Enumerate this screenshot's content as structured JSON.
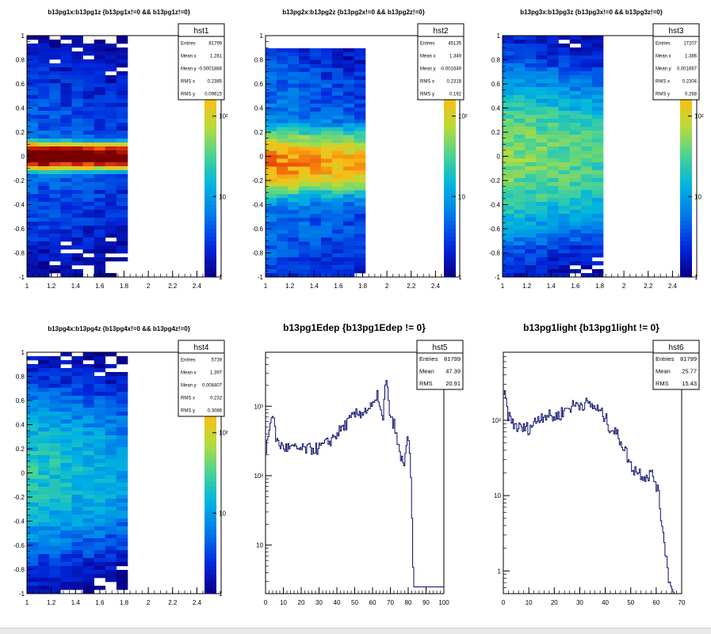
{
  "chart_data": [
    {
      "type": "heatmap",
      "title": "b13pg1x:b13pg1z {b13pg1x!=0 && b13pg1z!=0}",
      "stats": {
        "name": "hst1",
        "rows": [
          [
            "Entries",
            "81799"
          ],
          [
            "Mean x",
            "1.281"
          ],
          [
            "Mean y",
            "-0.0001888"
          ],
          [
            "RMS x",
            "0.2385"
          ],
          [
            "RMS y",
            "0.09615"
          ]
        ]
      },
      "xlim": [
        1,
        2.6
      ],
      "ylim": [
        -1,
        1
      ],
      "xticks": [
        1,
        1.2,
        1.4,
        1.6,
        1.8,
        2,
        2.2,
        2.4
      ],
      "yticks": [
        -1,
        -0.8,
        -0.6,
        -0.4,
        -0.2,
        0,
        0.2,
        0.4,
        0.6,
        0.8,
        1
      ],
      "colorbar_ticks": [
        "1",
        "10",
        "10²"
      ],
      "colorscale_max": 1000,
      "data_x_range": [
        1,
        1.85
      ],
      "peak": 2800,
      "core_sigma": 0.04,
      "tail_level": 5,
      "tail_sigma": 0.6,
      "x_falloff": 0.4
    },
    {
      "type": "heatmap",
      "title": "b13pg2x:b13pg2z {b13pg2x!=0 && b13pg2z!=0}",
      "stats": {
        "name": "hst2",
        "rows": [
          [
            "Entries",
            "45135"
          ],
          [
            "Mean x",
            "1.349"
          ],
          [
            "Mean y",
            "-0.001649"
          ],
          [
            "RMS x",
            "0.2318"
          ],
          [
            "RMS y",
            "0.192"
          ]
        ]
      },
      "xlim": [
        1,
        2.6
      ],
      "ylim": [
        -1,
        1
      ],
      "xticks": [
        1,
        1.2,
        1.4,
        1.6,
        1.8,
        2,
        2.2,
        2.4
      ],
      "yticks": [
        -1,
        -0.8,
        -0.6,
        -0.4,
        -0.2,
        0,
        0.2,
        0.4,
        0.6,
        0.8,
        1
      ],
      "colorbar_ticks": [
        "1",
        "10",
        "10²"
      ],
      "colorscale_max": 1000,
      "data_x_range": [
        1,
        1.85
      ],
      "peak": 300,
      "core_sigma": 0.12,
      "tail_level": 8,
      "tail_sigma": 0.7,
      "x_falloff": 0.45
    },
    {
      "type": "heatmap",
      "title": "b13pg3x:b13pg3z {b13pg3x!=0 && b13pg3z!=0}",
      "stats": {
        "name": "hst3",
        "rows": [
          [
            "Entries",
            "17207"
          ],
          [
            "Mean x",
            "1.386"
          ],
          [
            "Mean y",
            "0.001667"
          ],
          [
            "RMS x",
            "0.2304"
          ],
          [
            "RMS y",
            "0.268"
          ]
        ]
      },
      "xlim": [
        1,
        2.6
      ],
      "ylim": [
        -1,
        1
      ],
      "xticks": [
        1,
        1.2,
        1.4,
        1.6,
        1.8,
        2,
        2.2,
        2.4
      ],
      "yticks": [
        -1,
        -0.8,
        -0.6,
        -0.4,
        -0.2,
        0,
        0.2,
        0.4,
        0.6,
        0.8,
        1
      ],
      "colorbar_ticks": [
        "1",
        "10",
        "10²"
      ],
      "colorscale_max": 1000,
      "data_x_range": [
        1,
        1.85
      ],
      "peak": 55,
      "core_sigma": 0.3,
      "tail_level": 4,
      "tail_sigma": 0.8,
      "x_falloff": 0.5
    },
    {
      "type": "heatmap",
      "title": "b13pg4x:b13pg4z {b13pg4x!=0 && b13pg4z!=0}",
      "stats": {
        "name": "hst4",
        "rows": [
          [
            "Entries",
            "5739"
          ],
          [
            "Mean x",
            "1.397"
          ],
          [
            "Mean y",
            "0.008407"
          ],
          [
            "RMS x",
            "0.232"
          ],
          [
            "RMS y",
            "0.3086"
          ]
        ]
      },
      "xlim": [
        1,
        2.6
      ],
      "ylim": [
        -1,
        1
      ],
      "xticks": [
        1,
        1.2,
        1.4,
        1.6,
        1.8,
        2,
        2.2,
        2.4
      ],
      "yticks": [
        -1,
        -0.8,
        -0.6,
        -0.4,
        -0.2,
        0,
        0.2,
        0.4,
        0.6,
        0.8,
        1
      ],
      "colorbar_ticks": [
        "1",
        "10",
        "10²"
      ],
      "colorscale_max": 1000,
      "data_x_range": [
        1,
        1.85
      ],
      "peak": 22,
      "core_sigma": 0.35,
      "tail_level": 2,
      "tail_sigma": 0.9,
      "x_falloff": 0.55
    },
    {
      "type": "line",
      "style": "step",
      "title": "b13pg1Edep {b13pg1Edep != 0}",
      "stats": {
        "name": "hst5",
        "rows": [
          [
            "Entries",
            "81799"
          ],
          [
            "Mean",
            "47.39"
          ],
          [
            "RMS",
            "20.91"
          ]
        ]
      },
      "xlim": [
        0,
        100
      ],
      "ylim": [
        2,
        6000
      ],
      "yscale": "log",
      "xticks": [
        0,
        10,
        20,
        30,
        40,
        50,
        60,
        70,
        80,
        90,
        100
      ],
      "yticks": [
        {
          "v": 10,
          "label": "10"
        },
        {
          "v": 100,
          "label": "10²"
        },
        {
          "v": 1000,
          "label": "10³"
        }
      ],
      "x": [
        0,
        1,
        2,
        3,
        4,
        5,
        6,
        7,
        8,
        10,
        14,
        20,
        25,
        30,
        35,
        40,
        45,
        50,
        55,
        60,
        62,
        63,
        64,
        65,
        66,
        67,
        68,
        69,
        70,
        72,
        74,
        76,
        78,
        79,
        80,
        81,
        82,
        83,
        84,
        90,
        100
      ],
      "values": [
        200,
        320,
        400,
        700,
        850,
        500,
        350,
        300,
        280,
        260,
        250,
        240,
        245,
        250,
        300,
        400,
        550,
        750,
        850,
        1000,
        1100,
        1500,
        1200,
        700,
        600,
        1900,
        2100,
        1400,
        600,
        600,
        300,
        170,
        160,
        280,
        320,
        200,
        40,
        2.5,
        2.5,
        2.5,
        2.5
      ]
    },
    {
      "type": "line",
      "style": "step",
      "title": "b13pg1light {b13pg1light != 0}",
      "stats": {
        "name": "hst6",
        "rows": [
          [
            "Entries",
            "81799"
          ],
          [
            "Mean",
            "25.77"
          ],
          [
            "RMS",
            "15.43"
          ]
        ]
      },
      "xlim": [
        0,
        70
      ],
      "ylim": [
        0.5,
        800
      ],
      "yscale": "log",
      "xticks": [
        0,
        10,
        20,
        30,
        40,
        50,
        60,
        70
      ],
      "yticks": [
        {
          "v": 1,
          "label": "1"
        },
        {
          "v": 10,
          "label": "10"
        },
        {
          "v": 100,
          "label": "10²"
        }
      ],
      "x": [
        0,
        0.5,
        1,
        1.5,
        2,
        3,
        4,
        5,
        6,
        8,
        10,
        12,
        14,
        16,
        18,
        20,
        22,
        24,
        26,
        28,
        30,
        32,
        34,
        36,
        38,
        40,
        42,
        44,
        46,
        48,
        50,
        52,
        54,
        56,
        58,
        60,
        61,
        62,
        63,
        64,
        65,
        66,
        67
      ],
      "values": [
        300,
        220,
        180,
        150,
        120,
        100,
        90,
        85,
        80,
        78,
        80,
        90,
        110,
        120,
        115,
        110,
        120,
        135,
        150,
        160,
        165,
        170,
        160,
        150,
        130,
        110,
        80,
        70,
        55,
        40,
        25,
        22,
        20,
        18,
        20,
        15,
        10,
        5,
        3,
        1.5,
        0.8,
        0.6,
        0.5
      ]
    }
  ]
}
